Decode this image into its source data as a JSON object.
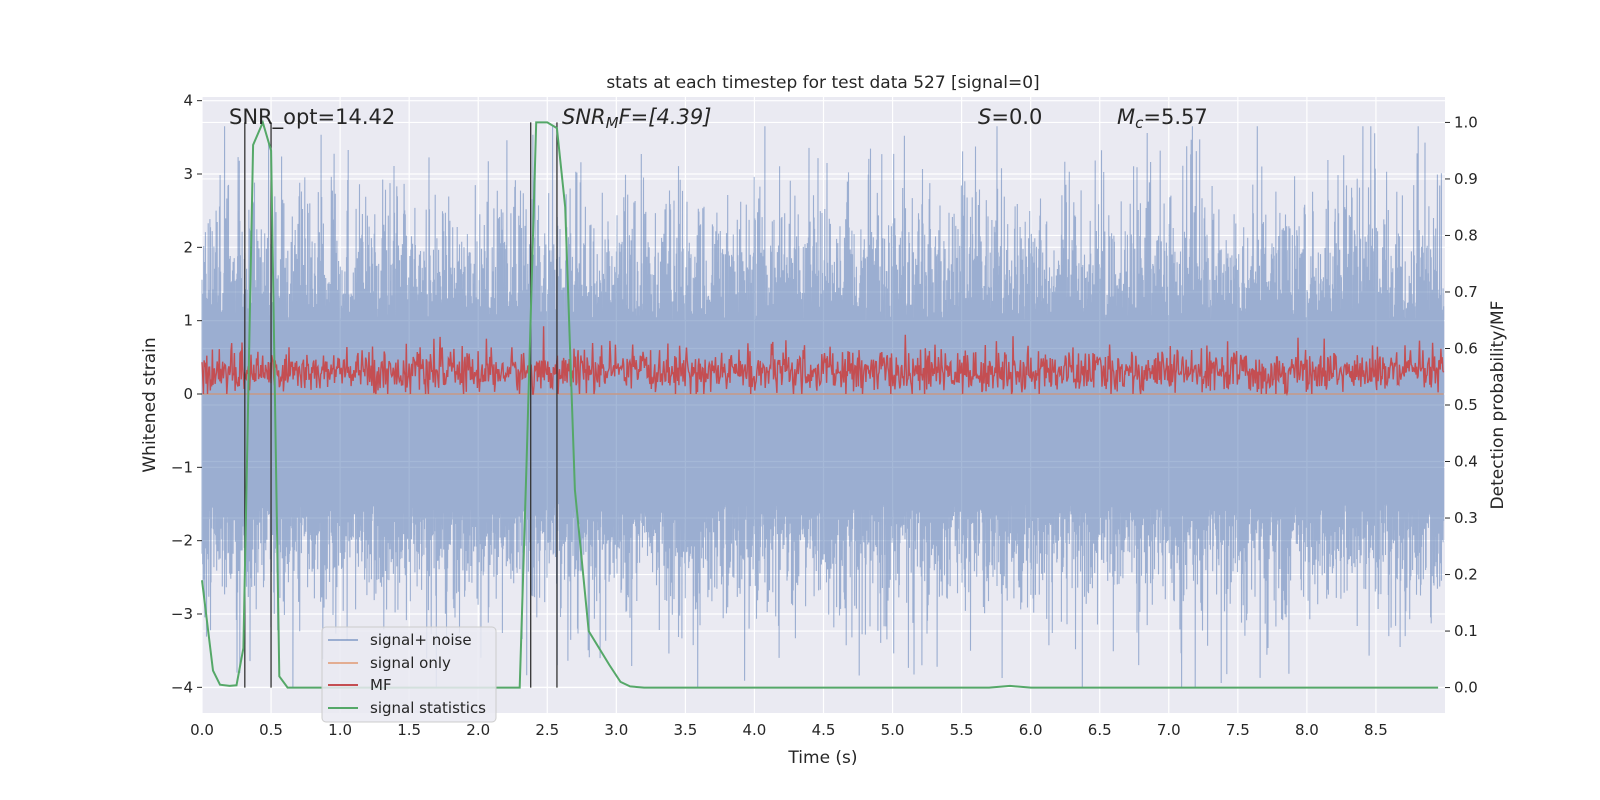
{
  "chart_data": {
    "type": "line",
    "title": "stats at each timestep for test data 527 [signal=0]",
    "xlabel": "Time (s)",
    "ylabel": "Whitened strain",
    "ylabel_right": "Detection probability/MF",
    "xlim": [
      0.0,
      9.0
    ],
    "ylim": [
      -4.35,
      4.05
    ],
    "ylim_right": [
      -0.045,
      1.045
    ],
    "xticks": [
      "0.0",
      "0.5",
      "1.0",
      "1.5",
      "2.0",
      "2.5",
      "3.0",
      "3.5",
      "4.0",
      "4.5",
      "5.0",
      "5.5",
      "6.0",
      "6.5",
      "7.0",
      "7.5",
      "8.0",
      "8.5"
    ],
    "yticks": [
      "4",
      "3",
      "2",
      "1",
      "0",
      "−1",
      "−2",
      "−3",
      "−4"
    ],
    "yticks_right": [
      "1.0",
      "0.9",
      "0.8",
      "0.7",
      "0.6",
      "0.5",
      "0.4",
      "0.3",
      "0.2",
      "0.1",
      "0.0"
    ],
    "grid": true,
    "legend_position": "lower-left",
    "annotations": {
      "snr_opt": "SNR_opt=14.42",
      "snr_mf_label": "SNR",
      "snr_mf_sub": "M",
      "snr_mf_rest": "F=[4.39]",
      "s_label": "S",
      "s_rest": "=0.0",
      "mc_label": "M",
      "mc_sub": "c",
      "mc_rest": "=5.57"
    },
    "vertical_markers_s": [
      0.31,
      0.5,
      2.38,
      2.57
    ],
    "series": [
      {
        "name": "signal+ noise",
        "color": "#4c72b0",
        "description_range": [
          -4.0,
          3.65
        ]
      },
      {
        "name": "signal only",
        "color": "#dd8452",
        "values_approx": 0.0
      },
      {
        "name": "MF",
        "color": "#c44e52",
        "range_approx": [
          0.0,
          1.0
        ]
      },
      {
        "name": "signal statistics",
        "color": "#55a868",
        "axis": "right",
        "x": [
          0.0,
          0.08,
          0.13,
          0.2,
          0.25,
          0.3,
          0.37,
          0.44,
          0.5,
          0.56,
          0.62,
          0.7,
          1.0,
          1.5,
          2.0,
          2.3,
          2.35,
          2.42,
          2.5,
          2.57,
          2.63,
          2.7,
          2.8,
          2.95,
          3.03,
          3.1,
          3.2,
          4.0,
          5.0,
          5.7,
          5.85,
          6.0,
          7.0,
          8.0,
          8.95
        ],
        "y": [
          0.19,
          0.03,
          0.005,
          0.003,
          0.004,
          0.07,
          0.96,
          1.0,
          0.95,
          0.02,
          0.0,
          0.0,
          0.0,
          0.0,
          0.0,
          0.0,
          0.4,
          1.0,
          1.0,
          0.99,
          0.85,
          0.35,
          0.1,
          0.04,
          0.01,
          0.002,
          0.0,
          0.0,
          0.0,
          0.0,
          0.003,
          0.0,
          0.0,
          0.0,
          0.0
        ]
      }
    ]
  }
}
